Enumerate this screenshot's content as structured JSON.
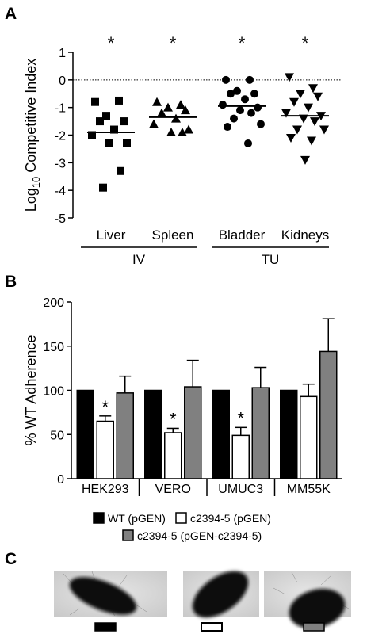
{
  "panel_labels": [
    "A",
    "B",
    "C"
  ],
  "chart_data": [
    {
      "type": "strip",
      "ylabel": [
        "Log",
        "10",
        " Competitive Index"
      ],
      "categories": [
        "Liver",
        "Spleen",
        "Bladder",
        "Kidneys"
      ],
      "groups": [
        {
          "marker": "square",
          "values": [
            -0.8,
            -0.75,
            -1.3,
            -1.5,
            -1.5,
            -1.8,
            -2.0,
            -2.3,
            -2.3,
            -3.3,
            -3.9
          ],
          "median": -1.9
        },
        {
          "marker": "triangle",
          "values": [
            -0.8,
            -0.9,
            -1.0,
            -1.1,
            -1.2,
            -1.4,
            -1.6,
            -1.8,
            -1.9,
            -1.9
          ],
          "median": -1.35
        },
        {
          "marker": "circle",
          "values": [
            0.0,
            0.0,
            -0.4,
            -0.5,
            -0.5,
            -0.7,
            -0.9,
            -1.0,
            -1.1,
            -1.2,
            -1.4,
            -1.6,
            -1.7,
            -2.3
          ],
          "median": -0.95
        },
        {
          "marker": "triangle-down",
          "values": [
            0.1,
            -0.3,
            -0.5,
            -0.6,
            -0.8,
            -1.0,
            -1.2,
            -1.3,
            -1.4,
            -1.5,
            -1.8,
            -1.8,
            -2.1,
            -2.2,
            -2.9
          ],
          "median": -1.3
        }
      ],
      "annotations": [
        "*",
        "*",
        "*",
        "*"
      ],
      "brackets": [
        {
          "label": "IV",
          "categories": [
            "Liver",
            "Spleen"
          ]
        },
        {
          "label": "TU",
          "categories": [
            "Bladder",
            "Kidneys"
          ]
        }
      ],
      "reference_line": 0,
      "ylim": [
        -5,
        1
      ],
      "yticks": [
        -5,
        -4,
        -3,
        -2,
        -1,
        0,
        1
      ]
    },
    {
      "type": "bar",
      "ylabel": "% WT Adherence",
      "categories": [
        "HEK293",
        "VERO",
        "UMUC3",
        "MM55K"
      ],
      "series": [
        {
          "name": "WT (pGEN)",
          "color": "#000000",
          "values": [
            100,
            100,
            100,
            100
          ]
        },
        {
          "name": "c2394-5 (pGEN)",
          "color": "#ffffff",
          "values": [
            65,
            52,
            49,
            93
          ],
          "errors": [
            6,
            5,
            9,
            14
          ],
          "annotations": [
            "*",
            "*",
            "*",
            null
          ]
        },
        {
          "name": "c2394-5 (pGEN-c2394-5)",
          "color": "#808080",
          "values": [
            97,
            104,
            103,
            144
          ],
          "errors": [
            19,
            30,
            23,
            37
          ]
        }
      ],
      "ylim": [
        0,
        200
      ],
      "yticks": [
        0,
        50,
        100,
        150,
        200
      ]
    }
  ]
}
